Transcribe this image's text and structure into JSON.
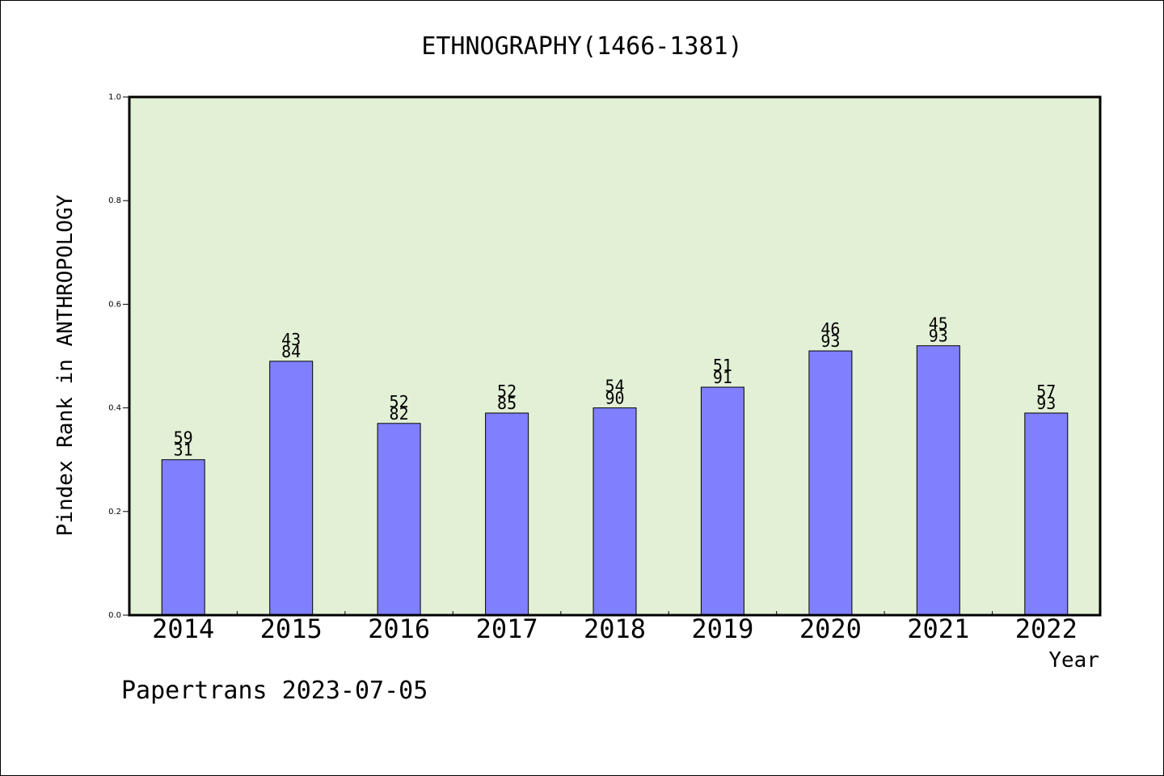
{
  "chart_data": {
    "type": "bar",
    "title": "ETHNOGRAPHY(1466-1381)",
    "xlabel": "Year",
    "ylabel": "Pindex Rank in ANTHROPOLOGY",
    "categories": [
      "2014",
      "2015",
      "2016",
      "2017",
      "2018",
      "2019",
      "2020",
      "2021",
      "2022"
    ],
    "values": [
      0.3,
      0.49,
      0.37,
      0.39,
      0.4,
      0.44,
      0.51,
      0.52,
      0.39
    ],
    "label_top": [
      "59",
      "43",
      "52",
      "52",
      "54",
      "51",
      "46",
      "45",
      "57"
    ],
    "label_bottom": [
      "31",
      "84",
      "82",
      "85",
      "90",
      "91",
      "93",
      "93",
      "93"
    ],
    "ylim": [
      0,
      1.0
    ],
    "yticks": [
      "0.0",
      "0.2",
      "0.4",
      "0.6",
      "0.8",
      "1.0"
    ],
    "grid": false,
    "colors": {
      "bar": "#8080ff",
      "plot_bg": "#e2f0d6",
      "axis": "#000000"
    }
  },
  "footer": {
    "text": "Papertrans 2023-07-05"
  }
}
